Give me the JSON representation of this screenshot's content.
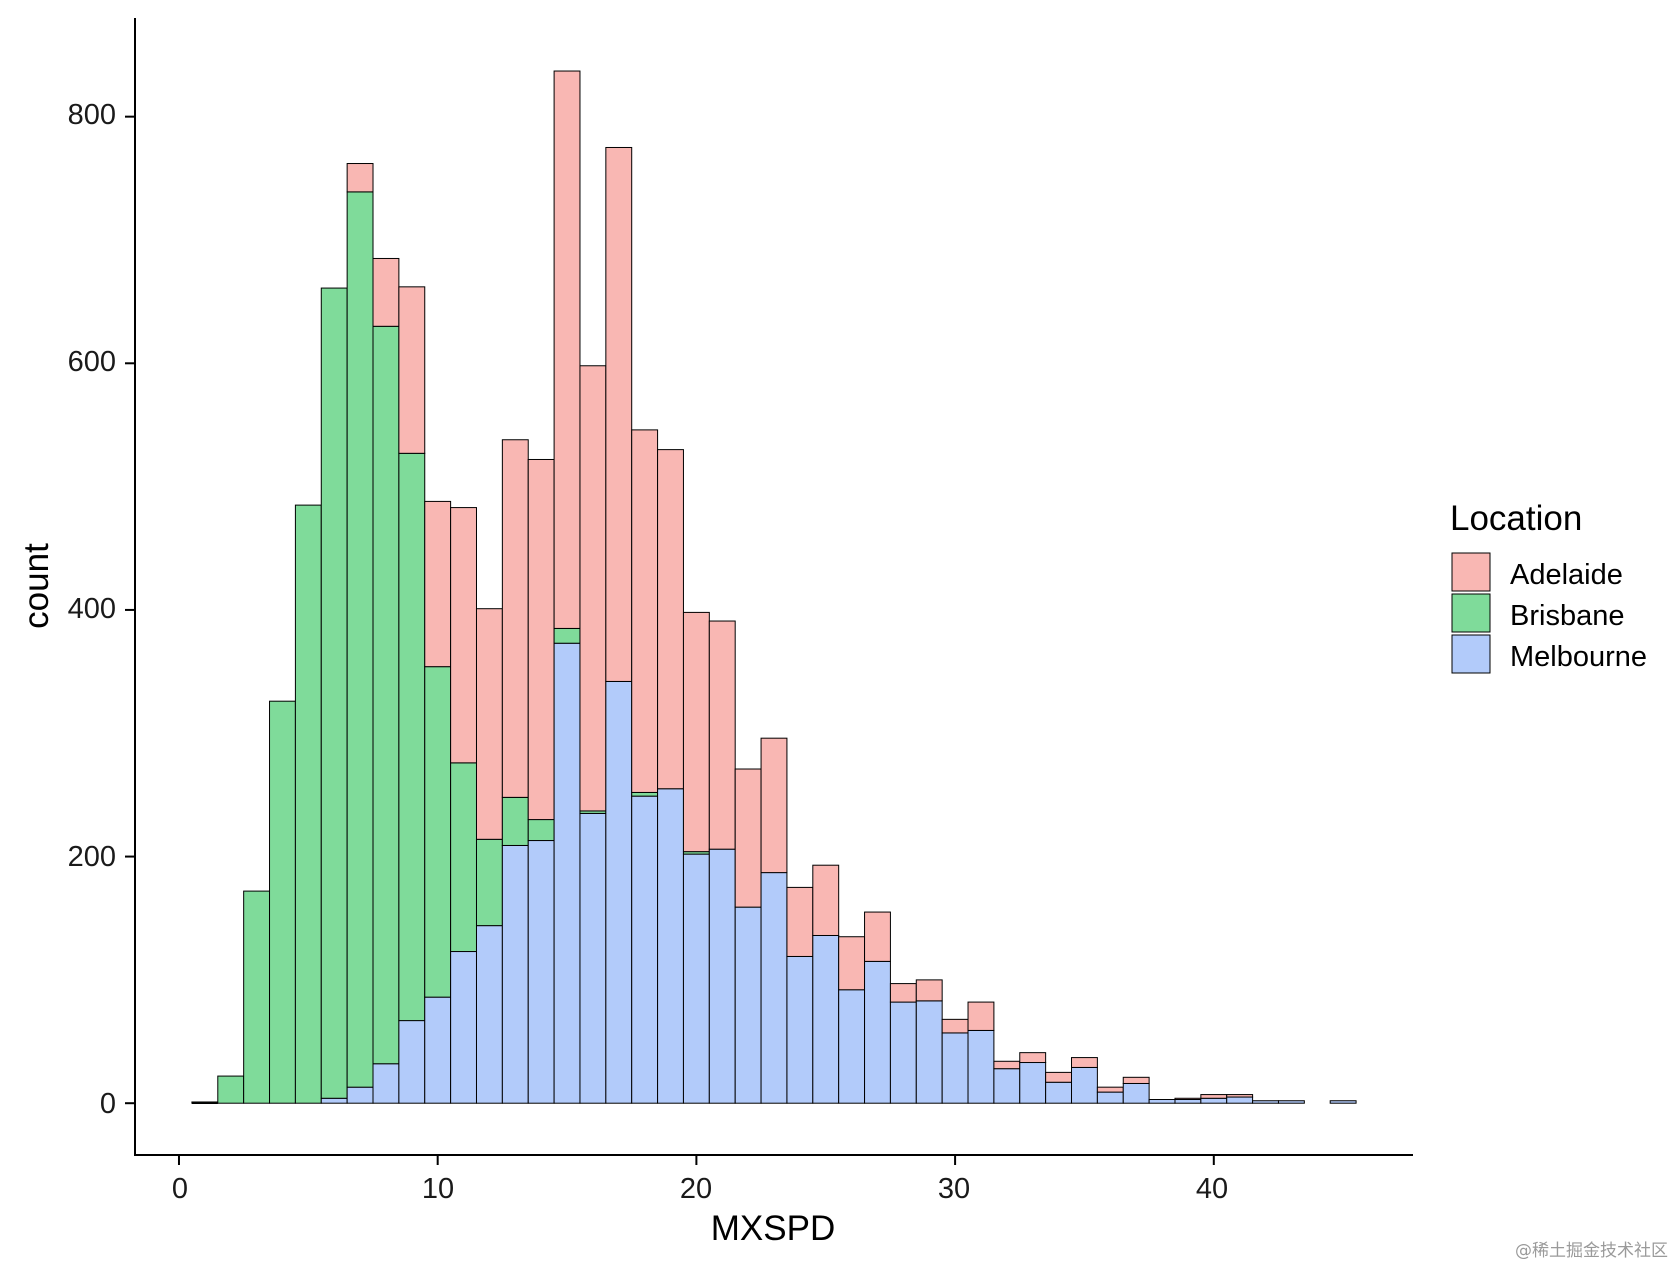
{
  "chart_data": {
    "type": "bar",
    "subtype": "stacked-histogram",
    "xlabel": "MXSPD",
    "ylabel": "count",
    "xlim": [
      -1.7,
      47.7
    ],
    "ylim": [
      -42,
      880
    ],
    "xticks": [
      0,
      10,
      20,
      30,
      40
    ],
    "yticks": [
      0,
      200,
      400,
      600,
      800
    ],
    "bin_width": 1,
    "bin_centers": [
      1,
      2,
      3,
      4,
      5,
      6,
      7,
      8,
      9,
      10,
      11,
      12,
      13,
      14,
      15,
      16,
      17,
      18,
      19,
      20,
      21,
      22,
      23,
      24,
      25,
      26,
      27,
      28,
      29,
      30,
      31,
      32,
      33,
      34,
      35,
      36,
      37,
      38,
      39,
      40,
      41,
      42,
      43,
      44,
      45
    ],
    "series": [
      {
        "name": "Melbourne",
        "color": "#B2CBFA",
        "values": [
          0,
          0,
          0,
          0,
          0,
          4,
          13,
          32,
          67,
          86,
          123,
          144,
          209,
          213,
          373,
          235,
          342,
          249,
          255,
          202,
          206,
          159,
          187,
          119,
          136,
          92,
          115,
          82,
          83,
          57,
          59,
          28,
          33,
          17,
          29,
          9,
          16,
          3,
          3,
          4,
          5,
          2,
          2,
          0,
          2
        ]
      },
      {
        "name": "Brisbane",
        "color": "#7FDB9A",
        "values": [
          1,
          22,
          172,
          326,
          485,
          657,
          726,
          598,
          460,
          268,
          153,
          70,
          39,
          17,
          12,
          2,
          0,
          3,
          0,
          2,
          0,
          0,
          0,
          0,
          0,
          0,
          0,
          0,
          0,
          0,
          0,
          0,
          0,
          0,
          0,
          0,
          0,
          0,
          0,
          0,
          0,
          0,
          0,
          0,
          0
        ]
      },
      {
        "name": "Adelaide",
        "color": "#F9B7B3",
        "values": [
          0,
          0,
          0,
          0,
          0,
          0,
          23,
          55,
          135,
          134,
          207,
          187,
          290,
          292,
          452,
          361,
          433,
          294,
          275,
          194,
          185,
          112,
          109,
          56,
          57,
          43,
          40,
          15,
          17,
          11,
          23,
          6,
          8,
          8,
          8,
          4,
          5,
          0,
          1,
          3,
          2,
          0,
          0,
          0,
          0
        ]
      }
    ],
    "legend": {
      "title": "Location",
      "position": "right",
      "entries": [
        "Adelaide",
        "Brisbane",
        "Melbourne"
      ]
    }
  },
  "tick_labels": {
    "x": [
      "0",
      "10",
      "20",
      "30",
      "40"
    ],
    "y": [
      "0",
      "200",
      "400",
      "600",
      "800"
    ]
  },
  "legend_text": {
    "title": "Location",
    "items": [
      "Adelaide",
      "Brisbane",
      "Melbourne"
    ]
  },
  "watermark": "@稀土掘金技术社区",
  "colors": {
    "adelaide": "#F9B7B3",
    "brisbane": "#7FDB9A",
    "melbourne": "#B2CBFA",
    "outline": "#000000"
  }
}
